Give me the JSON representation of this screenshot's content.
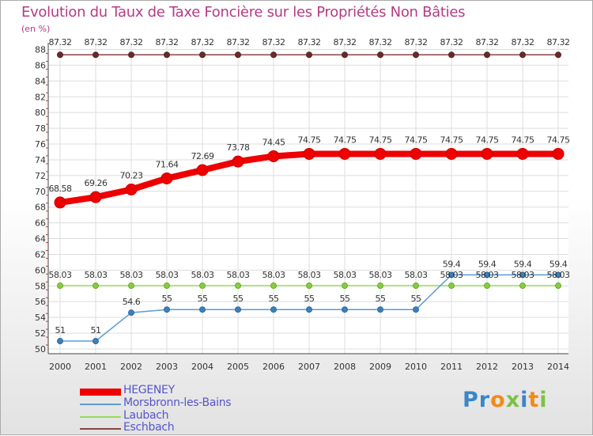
{
  "chart_data": {
    "type": "line",
    "title": "Evolution du Taux de Taxe Foncière sur les Propriétés Non Bâties",
    "ylabel": "(en %)",
    "xlabel": "",
    "ylim": [
      50,
      88
    ],
    "ytick_step": 2,
    "categories": [
      "2000",
      "2001",
      "2002",
      "2003",
      "2004",
      "2005",
      "2006",
      "2007",
      "2008",
      "2009",
      "2010",
      "2011",
      "2012",
      "2013",
      "2014"
    ],
    "series": [
      {
        "name": "HEGENEY",
        "color": "#ee0000",
        "values": [
          68.58,
          69.26,
          70.23,
          71.64,
          72.69,
          73.78,
          74.45,
          74.75,
          74.75,
          74.75,
          74.75,
          74.75,
          74.75,
          74.75,
          74.75
        ],
        "labels": [
          "68.58",
          "69.26",
          "70.23",
          "71.64",
          "72.69",
          "73.78",
          "74.45",
          "74.75",
          "74.75",
          "74.75",
          "74.75",
          "74.75",
          "74.75",
          "74.75",
          "74.75"
        ]
      },
      {
        "name": "Morsbronn-les-Bains",
        "color": "#5b9bd5",
        "values": [
          51,
          51,
          54.6,
          55,
          55,
          55,
          55,
          55,
          55,
          55,
          55,
          59.4,
          59.4,
          59.4,
          59.4
        ],
        "labels": [
          "51",
          "51",
          "54.6",
          "55",
          "55",
          "55",
          "55",
          "55",
          "55",
          "55",
          "55",
          "59.4",
          "59.4",
          "59.4",
          "59.4"
        ]
      },
      {
        "name": "Laubach",
        "color": "#99dd55",
        "values": [
          58.03,
          58.03,
          58.03,
          58.03,
          58.03,
          58.03,
          58.03,
          58.03,
          58.03,
          58.03,
          58.03,
          58.03,
          58.03,
          58.03,
          58.03
        ],
        "labels": [
          "58.03",
          "58.03",
          "58.03",
          "58.03",
          "58.03",
          "58.03",
          "58.03",
          "58.03",
          "58.03",
          "58.03",
          "58.03",
          "58.03",
          "58.03",
          "58.03",
          "58.03"
        ]
      },
      {
        "name": "Eschbach",
        "color": "#884444",
        "values": [
          87.32,
          87.32,
          87.32,
          87.32,
          87.32,
          87.32,
          87.32,
          87.32,
          87.32,
          87.32,
          87.32,
          87.32,
          87.32,
          87.32,
          87.32
        ],
        "labels": [
          "87.32",
          "87.32",
          "87.32",
          "87.32",
          "87.32",
          "87.32",
          "87.32",
          "87.32",
          "87.32",
          "87.32",
          "87.32",
          "87.32",
          "87.32",
          "87.32",
          "87.32"
        ]
      }
    ]
  },
  "legend": [
    {
      "name": "HEGENEY",
      "color": "#ee0000"
    },
    {
      "name": "Morsbronn-les-Bains",
      "color": "#5b9bd5"
    },
    {
      "name": "Laubach",
      "color": "#99dd55"
    },
    {
      "name": "Eschbach",
      "color": "#884444"
    }
  ],
  "logo": {
    "text": "Proxiti",
    "colors": [
      "#3a86c8",
      "#3a86c8",
      "#f28a1a",
      "#7cc243",
      "#3a86c8",
      "#f28a1a",
      "#7cc243"
    ]
  }
}
